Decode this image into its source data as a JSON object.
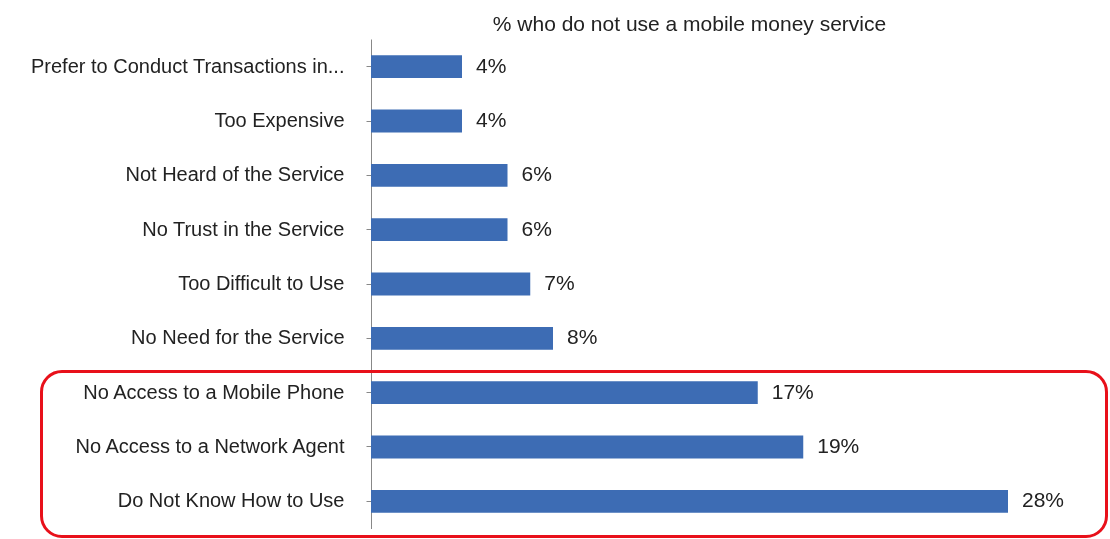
{
  "chart_data": {
    "type": "bar",
    "orientation": "horizontal",
    "title": "% who do not use a mobile money service",
    "categories": [
      "Prefer to Conduct Transactions in...",
      "Too Expensive",
      "Not Heard of the Service",
      "No Trust in the Service",
      "Too Difficult to Use",
      "No Need for the Service",
      "No Access to a Mobile Phone",
      "No Access to a Network Agent",
      "Do Not Know How to Use"
    ],
    "values": [
      4,
      4,
      6,
      6,
      7,
      8,
      17,
      19,
      28
    ],
    "value_labels": [
      "4%",
      "4%",
      "6%",
      "6%",
      "7%",
      "8%",
      "17%",
      "19%",
      "28%"
    ],
    "color": "#3d6cb4"
  }
}
